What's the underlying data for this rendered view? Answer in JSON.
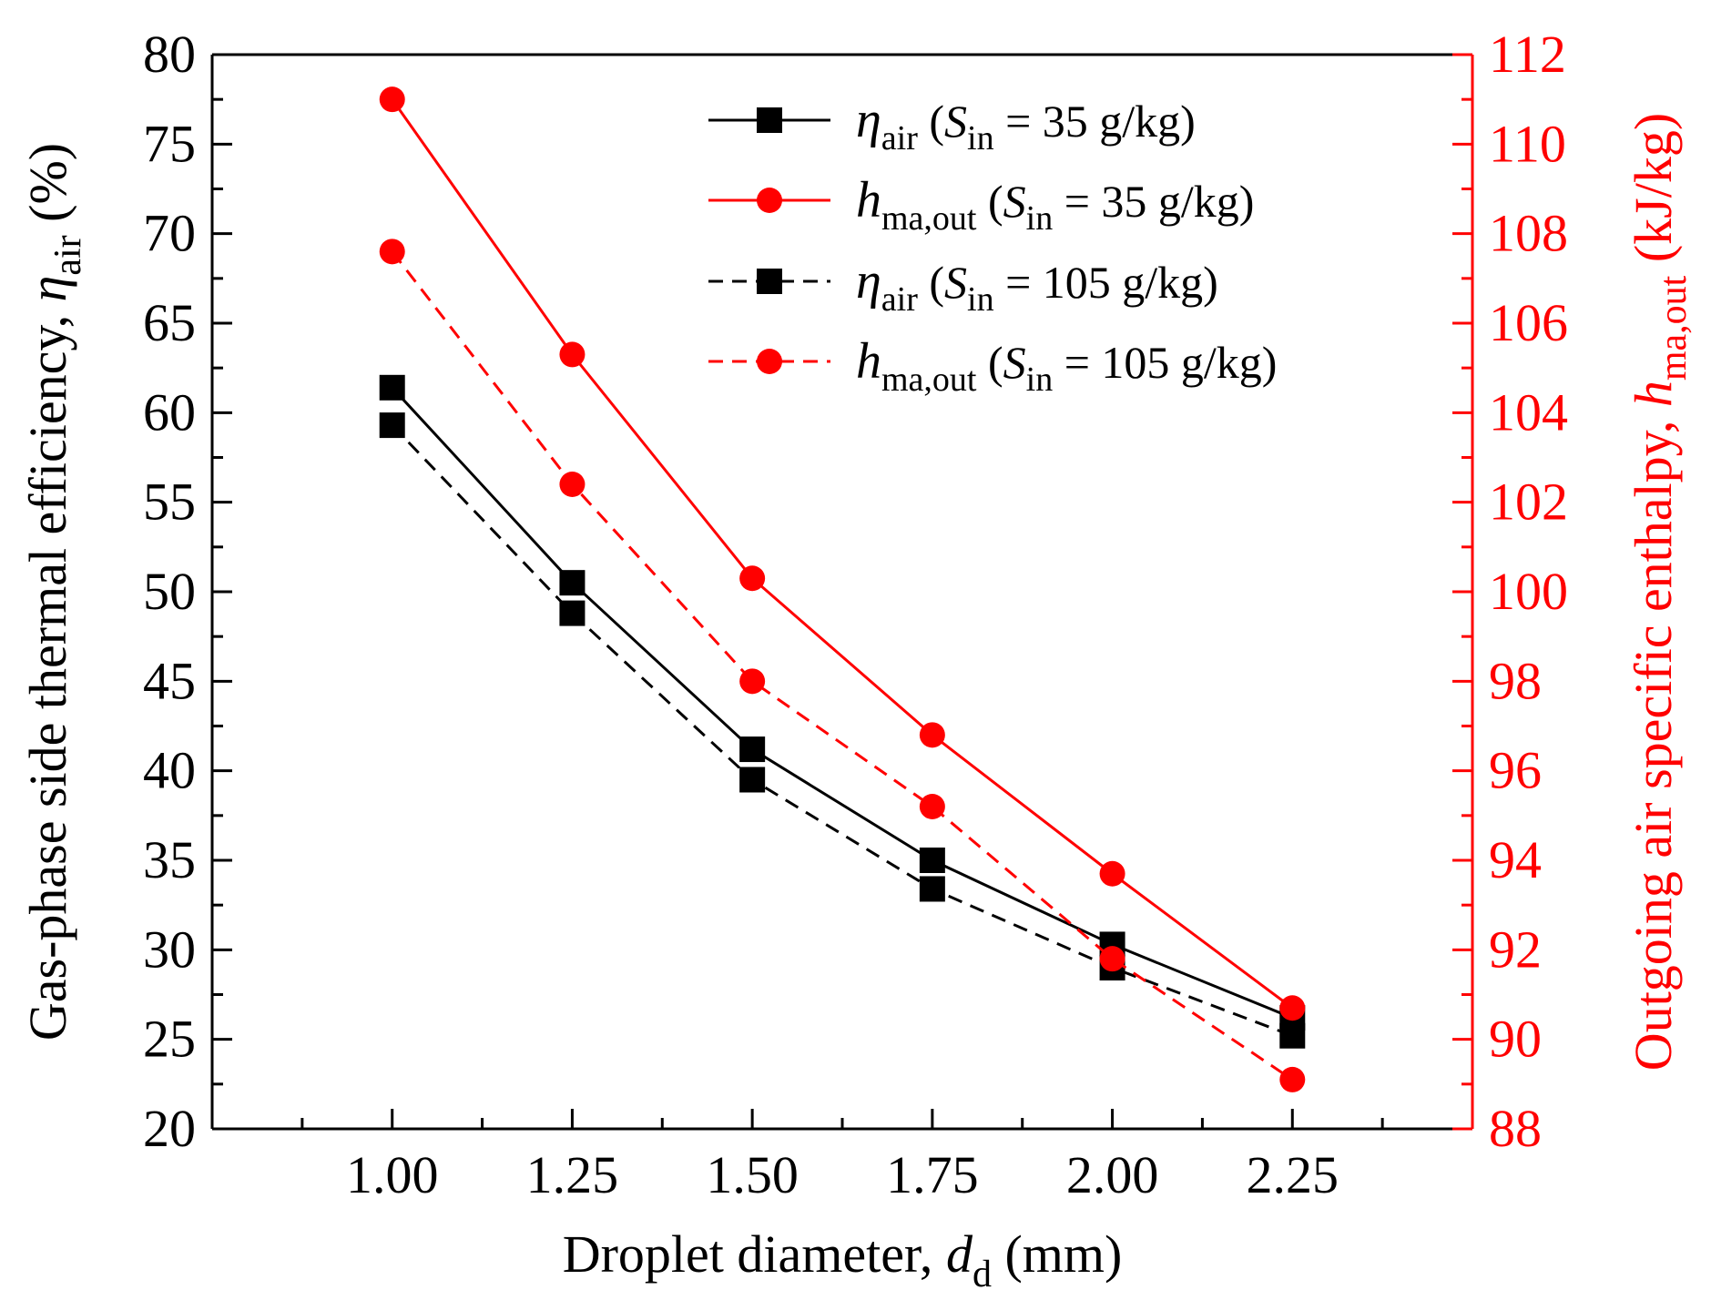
{
  "chart_data": {
    "type": "line",
    "x": [
      1.0,
      1.25,
      1.5,
      1.75,
      2.0,
      2.25
    ],
    "x_tick_labels": [
      "1.00",
      "1.25",
      "1.50",
      "1.75",
      "2.00",
      "2.25"
    ],
    "xlabel": {
      "main": "Droplet diameter, ",
      "sym": "d",
      "sub": "d",
      "unit": " (mm)"
    },
    "xlim": [
      0.75,
      2.5
    ],
    "ylabel_left": {
      "main": "Gas-phase side thermal efficiency, ",
      "sym": "η",
      "sub": "air",
      "unit": " (%)"
    },
    "ylim_left": [
      20,
      80
    ],
    "y_left_ticks": [
      20,
      25,
      30,
      35,
      40,
      45,
      50,
      55,
      60,
      65,
      70,
      75,
      80
    ],
    "ylabel_right": {
      "main": "Outgoing air specific enthalpy, ",
      "sym": "h",
      "sub": "ma,out",
      "unit": " (kJ/kg)"
    },
    "ylim_right": [
      88,
      112
    ],
    "y_right_ticks": [
      88,
      90,
      92,
      94,
      96,
      98,
      100,
      102,
      104,
      106,
      108,
      110,
      112
    ],
    "grid": false,
    "legend_position": "top-right",
    "series": [
      {
        "name": "η_air (S_in = 35 g/kg)",
        "legend": {
          "sym": "η",
          "sub": "air",
          "rest1": " (",
          "s": "S",
          "ssub": "in",
          "rest2": " = 35 g/kg)"
        },
        "axis": "left",
        "color": "#000000",
        "marker": "square",
        "dash": "solid",
        "values": [
          61.4,
          50.5,
          41.2,
          35.0,
          30.3,
          26.2
        ]
      },
      {
        "name": "h_ma,out (S_in = 35 g/kg)",
        "legend": {
          "sym": "h",
          "sub": "ma,out",
          "rest1": " (",
          "s": "S",
          "ssub": "in",
          "rest2": " = 35 g/kg)"
        },
        "axis": "right",
        "color": "#ff0000",
        "marker": "circle",
        "dash": "solid",
        "values": [
          111.0,
          105.3,
          100.3,
          96.8,
          93.7,
          90.7
        ]
      },
      {
        "name": "η_air (S_in = 105 g/kg)",
        "legend": {
          "sym": "η",
          "sub": "air",
          "rest1": " (",
          "s": "S",
          "ssub": "in",
          "rest2": " = 105 g/kg)"
        },
        "axis": "left",
        "color": "#000000",
        "marker": "square",
        "dash": "dashed",
        "values": [
          59.3,
          48.8,
          39.5,
          33.4,
          29.0,
          25.2
        ]
      },
      {
        "name": "h_ma,out (S_in = 105 g/kg)",
        "legend": {
          "sym": "h",
          "sub": "ma,out",
          "rest1": " (",
          "s": "S",
          "ssub": "in",
          "rest2": " = 105 g/kg)"
        },
        "axis": "right",
        "color": "#ff0000",
        "marker": "circle",
        "dash": "dashed",
        "values": [
          107.6,
          102.4,
          98.0,
          95.2,
          91.8,
          89.1
        ]
      }
    ]
  }
}
